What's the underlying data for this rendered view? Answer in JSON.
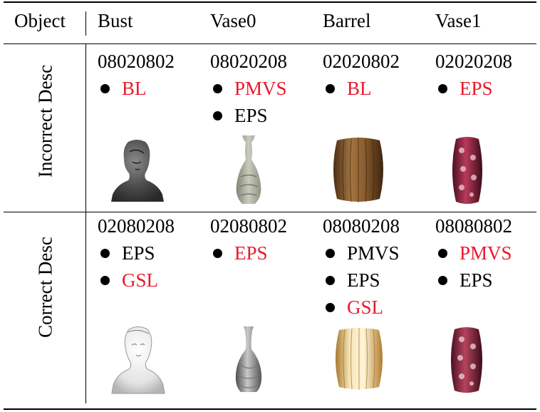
{
  "header": {
    "object_label": "Object",
    "columns": [
      "Bust",
      "Vase0",
      "Barrel",
      "Vase1"
    ]
  },
  "rows": [
    {
      "label": "Incorrect Desc",
      "cells": [
        {
          "code": "08020802",
          "items": [
            {
              "text": "BL",
              "color": "red"
            }
          ],
          "object": "bust-dark"
        },
        {
          "code": "08020208",
          "items": [
            {
              "text": "PMVS",
              "color": "red"
            },
            {
              "text": "EPS",
              "color": "black"
            }
          ],
          "object": "vase-rough"
        },
        {
          "code": "02020802",
          "items": [
            {
              "text": "BL",
              "color": "red"
            }
          ],
          "object": "barrel-wood"
        },
        {
          "code": "02020208",
          "items": [
            {
              "text": "EPS",
              "color": "red"
            }
          ],
          "object": "vase-floral"
        }
      ]
    },
    {
      "label": "Correct Desc",
      "cells": [
        {
          "code": "02080208",
          "items": [
            {
              "text": "EPS",
              "color": "black"
            },
            {
              "text": "GSL",
              "color": "red"
            }
          ],
          "object": "bust-white"
        },
        {
          "code": "02080802",
          "items": [
            {
              "text": "EPS",
              "color": "red"
            }
          ],
          "object": "vase-smooth"
        },
        {
          "code": "08080208",
          "items": [
            {
              "text": "PMVS",
              "color": "black"
            },
            {
              "text": "EPS",
              "color": "black"
            },
            {
              "text": "GSL",
              "color": "red"
            }
          ],
          "object": "barrel-light"
        },
        {
          "code": "08080802",
          "items": [
            {
              "text": "PMVS",
              "color": "red"
            },
            {
              "text": "EPS",
              "color": "black"
            }
          ],
          "object": "vase-floral"
        }
      ]
    }
  ],
  "colors": {
    "red": "#e8192c",
    "black": "#000000"
  }
}
